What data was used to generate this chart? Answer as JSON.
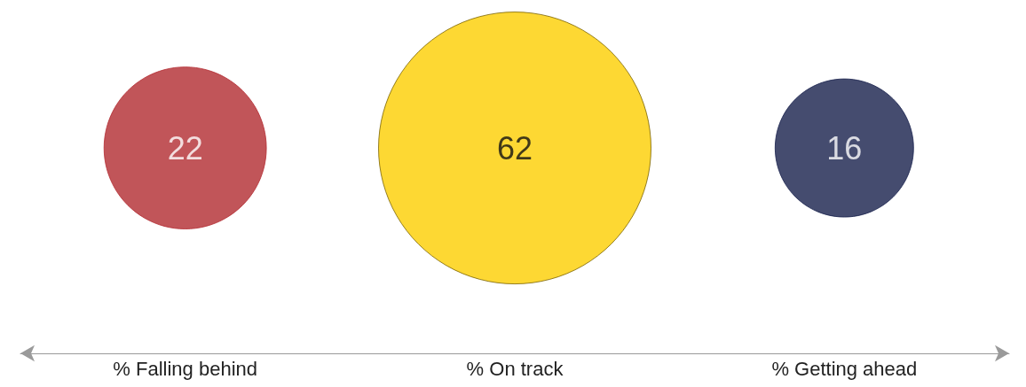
{
  "chart_data": {
    "type": "other",
    "categories": [
      "% Falling behind",
      "% On track",
      "% Getting ahead"
    ],
    "values": [
      22,
      62,
      16
    ],
    "colors": [
      "#b22a30",
      "#fcce00",
      "#161f4b"
    ],
    "data_labels": true
  }
}
